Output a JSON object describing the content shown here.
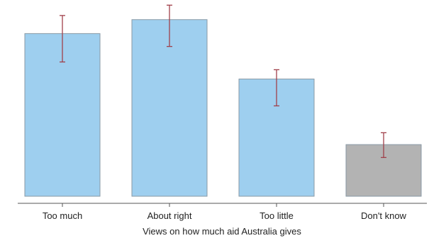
{
  "chart_data": {
    "type": "bar",
    "title": "",
    "xlabel": "Views on how much aid Australia gives",
    "ylabel": "",
    "categories": [
      "Too much",
      "About right",
      "Too little",
      "Don't know"
    ],
    "values": [
      31.5,
      34.2,
      22.7,
      10
    ],
    "error_low": [
      26,
      29,
      17.5,
      7.5
    ],
    "error_high": [
      35,
      37,
      24.5,
      12.3
    ],
    "bar_colors": [
      "#9ecfef",
      "#9ecfef",
      "#9ecfef",
      "#b3b3b3"
    ],
    "bar_edge_color": "#8a9aa6",
    "error_bar_color": "#a0404a",
    "ylim": [
      0,
      38
    ],
    "grid": false,
    "legend": "none"
  }
}
